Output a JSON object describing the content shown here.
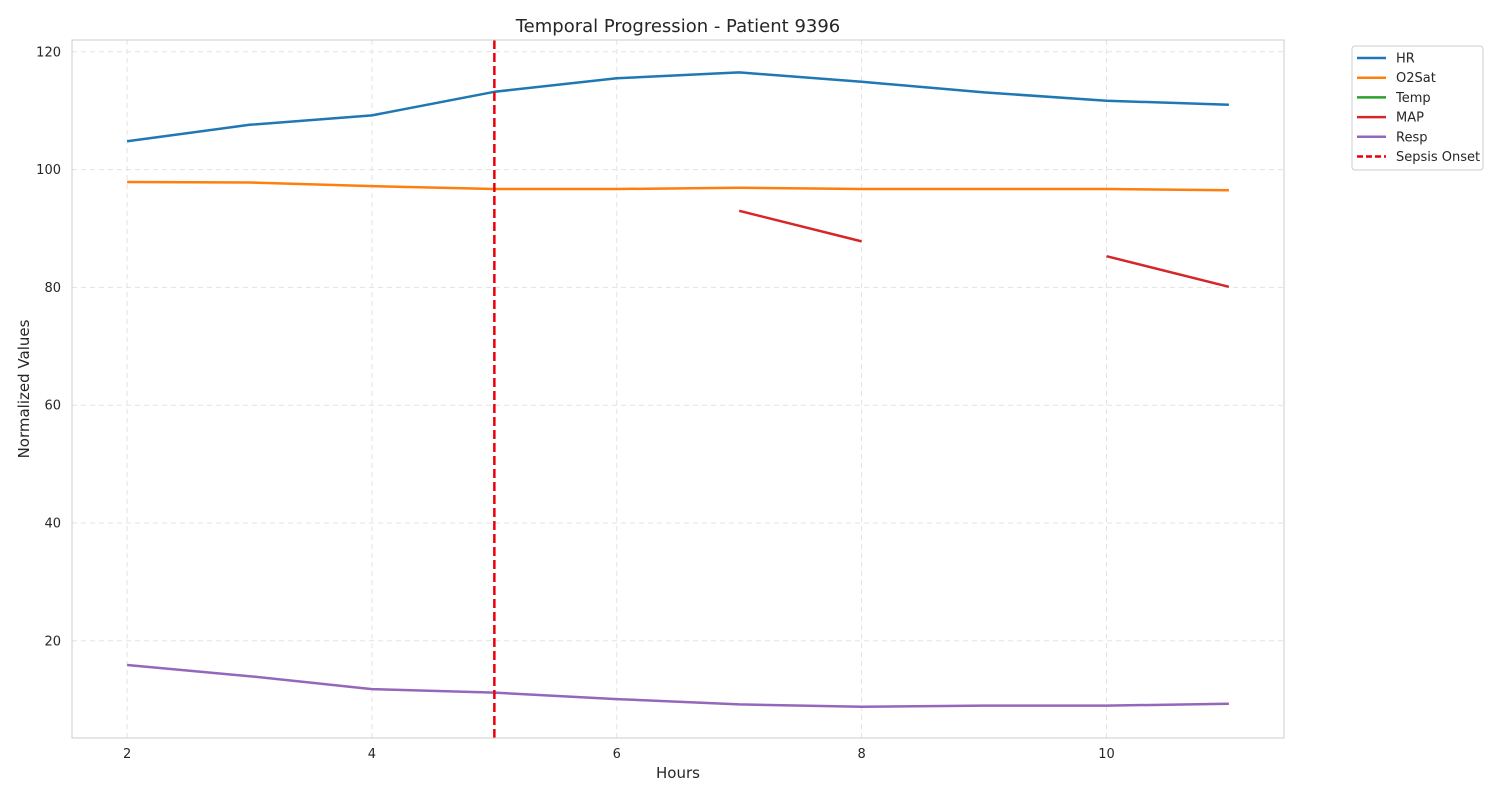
{
  "chart_data": {
    "type": "line",
    "title": "Temporal Progression - Patient 9396",
    "xlabel": "Hours",
    "ylabel": "Normalized Values",
    "xlim": [
      1.55,
      11.45
    ],
    "ylim": [
      3.5,
      122
    ],
    "xticks": [
      2,
      4,
      6,
      8,
      10
    ],
    "yticks": [
      20,
      40,
      60,
      80,
      100,
      120
    ],
    "grid": true,
    "legend_position": "outside top-right",
    "x": [
      2,
      3,
      4,
      5,
      6,
      7,
      8,
      9,
      10,
      11
    ],
    "series": [
      {
        "name": "HR",
        "color": "#1f77b4",
        "values": [
          104.8,
          107.6,
          109.2,
          113.2,
          115.5,
          116.5,
          114.9,
          113.1,
          111.7,
          111.0
        ]
      },
      {
        "name": "O2Sat",
        "color": "#ff7f0e",
        "values": [
          97.9,
          97.8,
          97.2,
          96.7,
          96.7,
          96.9,
          96.7,
          96.7,
          96.7,
          96.5
        ]
      },
      {
        "name": "Temp",
        "color": "#2ca02c",
        "values": [
          null,
          null,
          null,
          null,
          null,
          null,
          null,
          null,
          null,
          null
        ]
      },
      {
        "name": "MAP",
        "color": "#d62728",
        "values": [
          null,
          null,
          null,
          null,
          null,
          93.0,
          87.8,
          null,
          85.3,
          80.1
        ]
      },
      {
        "name": "Resp",
        "color": "#9467bd",
        "values": [
          15.9,
          14.0,
          11.8,
          11.2,
          10.1,
          9.2,
          8.8,
          9.0,
          9.0,
          9.3
        ]
      }
    ],
    "vline": {
      "name": "Sepsis Onset",
      "x": 5,
      "color": "#e8000b",
      "style": "dashed"
    }
  }
}
